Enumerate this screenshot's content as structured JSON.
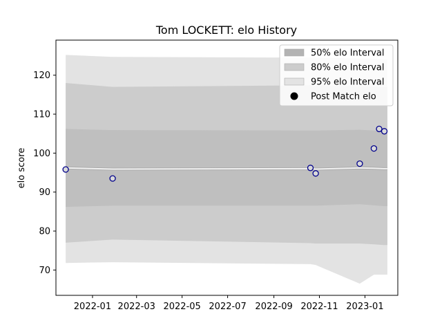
{
  "chart_data": {
    "type": "area",
    "title": "Tom LOCKETT: elo History",
    "xlabel": "",
    "ylabel": "elo score",
    "x_ticks": [
      "2022-01",
      "2022-03",
      "2022-05",
      "2022-07",
      "2022-09",
      "2022-11",
      "2023-01"
    ],
    "x_tick_dates": [
      "2022-01-01",
      "2022-03-01",
      "2022-05-01",
      "2022-07-01",
      "2022-09-01",
      "2022-11-01",
      "2023-01-01"
    ],
    "y_ticks": [
      70,
      80,
      90,
      100,
      110,
      120
    ],
    "xlim": [
      "2021-11-13",
      "2023-02-14"
    ],
    "ylim": [
      63.5,
      129
    ],
    "grid": false,
    "legend_position": "top-right",
    "legend": [
      {
        "label": "50% elo Interval",
        "color": "#b3b3b3",
        "kind": "patch"
      },
      {
        "label": "80% elo Interval",
        "color": "#cccccc",
        "kind": "patch"
      },
      {
        "label": "95% elo Interval",
        "color": "#e3e3e3",
        "kind": "patch"
      },
      {
        "label": "Post Match elo",
        "color": "#000000",
        "kind": "marker"
      }
    ],
    "mean_line": {
      "color": "#f2f2f2",
      "x": [
        "2021-11-26",
        "2022-01-28",
        "2022-10-20",
        "2022-10-27",
        "2022-12-25",
        "2023-01-13",
        "2023-01-26",
        "2023-01-31"
      ],
      "y": [
        96.2,
        95.9,
        96.0,
        95.9,
        96.2,
        96.1,
        96.0,
        96.0
      ]
    },
    "bands": [
      {
        "name": "95% elo Interval",
        "color": "#e3e3e3",
        "x": [
          "2021-11-26",
          "2022-01-28",
          "2022-10-20",
          "2022-10-27",
          "2022-12-25",
          "2023-01-13",
          "2023-01-26",
          "2023-01-31"
        ],
        "lower": [
          71.8,
          72.0,
          71.5,
          71.3,
          66.5,
          68.8,
          68.8,
          68.8
        ],
        "upper": [
          125.2,
          124.7,
          124.5,
          124.5,
          124.3,
          124.2,
          124.0,
          124.0
        ]
      },
      {
        "name": "80% elo Interval",
        "color": "#cccccc",
        "x": [
          "2021-11-26",
          "2022-01-28",
          "2022-10-20",
          "2022-10-27",
          "2022-12-25",
          "2023-01-13",
          "2023-01-26",
          "2023-01-31"
        ],
        "lower": [
          77.0,
          77.8,
          76.9,
          76.8,
          76.8,
          76.6,
          76.4,
          76.4
        ],
        "upper": [
          118.0,
          117.0,
          117.4,
          117.3,
          117.2,
          117.1,
          117.0,
          117.0
        ]
      },
      {
        "name": "50% elo Interval",
        "color": "#bfbfbf",
        "x": [
          "2021-11-26",
          "2022-01-28",
          "2022-10-20",
          "2022-10-27",
          "2022-12-25",
          "2023-01-13",
          "2023-01-26",
          "2023-01-31"
        ],
        "lower": [
          86.2,
          86.5,
          86.5,
          86.5,
          86.9,
          86.6,
          86.4,
          86.4
        ],
        "upper": [
          106.2,
          105.9,
          105.8,
          105.8,
          106.0,
          105.8,
          105.6,
          105.6
        ]
      }
    ],
    "series": [
      {
        "name": "Post Match elo",
        "marker_edge": "#00008b",
        "marker_face": "#d9d9d9",
        "points": [
          {
            "x": "2021-11-26",
            "y": 95.8
          },
          {
            "x": "2022-01-28",
            "y": 93.5
          },
          {
            "x": "2022-10-20",
            "y": 96.2
          },
          {
            "x": "2022-10-27",
            "y": 94.8
          },
          {
            "x": "2022-12-25",
            "y": 97.3
          },
          {
            "x": "2023-01-13",
            "y": 101.2
          },
          {
            "x": "2023-01-20",
            "y": 106.2
          },
          {
            "x": "2023-01-27",
            "y": 105.6
          }
        ]
      }
    ]
  }
}
